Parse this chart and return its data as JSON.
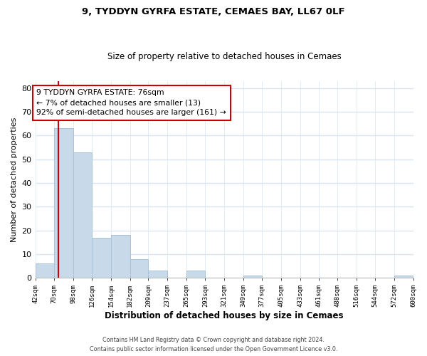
{
  "title": "9, TYDDYN GYRFA ESTATE, CEMAES BAY, LL67 0LF",
  "subtitle": "Size of property relative to detached houses in Cemaes",
  "xlabel": "Distribution of detached houses by size in Cemaes",
  "ylabel": "Number of detached properties",
  "bar_color": "#c8daea",
  "bar_edge_color": "#a8c4d8",
  "property_line_color": "#cc0000",
  "property_value": 76,
  "annotation_title": "9 TYDDYN GYRFA ESTATE: 76sqm",
  "annotation_line1": "← 7% of detached houses are smaller (13)",
  "annotation_line2": "92% of semi-detached houses are larger (161) →",
  "annotation_box_color": "#ffffff",
  "annotation_border_color": "#cc0000",
  "bins": [
    42,
    70,
    98,
    126,
    154,
    182,
    209,
    237,
    265,
    293,
    321,
    349,
    377,
    405,
    433,
    461,
    488,
    516,
    544,
    572,
    600
  ],
  "bin_labels": [
    "42sqm",
    "70sqm",
    "98sqm",
    "126sqm",
    "154sqm",
    "182sqm",
    "209sqm",
    "237sqm",
    "265sqm",
    "293sqm",
    "321sqm",
    "349sqm",
    "377sqm",
    "405sqm",
    "433sqm",
    "461sqm",
    "488sqm",
    "516sqm",
    "544sqm",
    "572sqm",
    "600sqm"
  ],
  "counts": [
    6,
    63,
    53,
    17,
    18,
    8,
    3,
    0,
    3,
    0,
    0,
    1,
    0,
    0,
    0,
    0,
    0,
    0,
    0,
    1
  ],
  "ylim": [
    0,
    83
  ],
  "yticks": [
    0,
    10,
    20,
    30,
    40,
    50,
    60,
    70,
    80
  ],
  "background_color": "#ffffff",
  "grid_color": "#d8e4f0",
  "footer_line1": "Contains HM Land Registry data © Crown copyright and database right 2024.",
  "footer_line2": "Contains public sector information licensed under the Open Government Licence v3.0."
}
